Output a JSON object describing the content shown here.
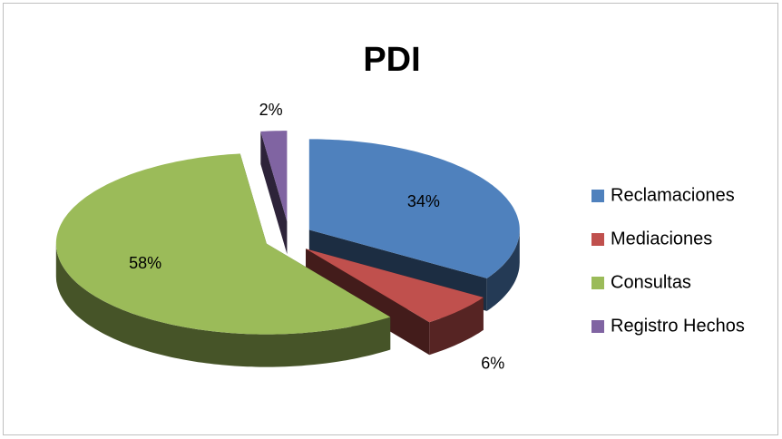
{
  "chart_data": {
    "type": "pie",
    "title": "PDI",
    "categories": [
      "Reclamaciones",
      "Mediaciones",
      "Consultas",
      "Registro Hechos"
    ],
    "values": [
      34,
      6,
      58,
      2
    ],
    "value_labels": [
      "34%",
      "6%",
      "58%",
      "2%"
    ],
    "colors": [
      "#4f81bd",
      "#c0504d",
      "#9bbb59",
      "#8064a2"
    ],
    "legend": "right"
  }
}
